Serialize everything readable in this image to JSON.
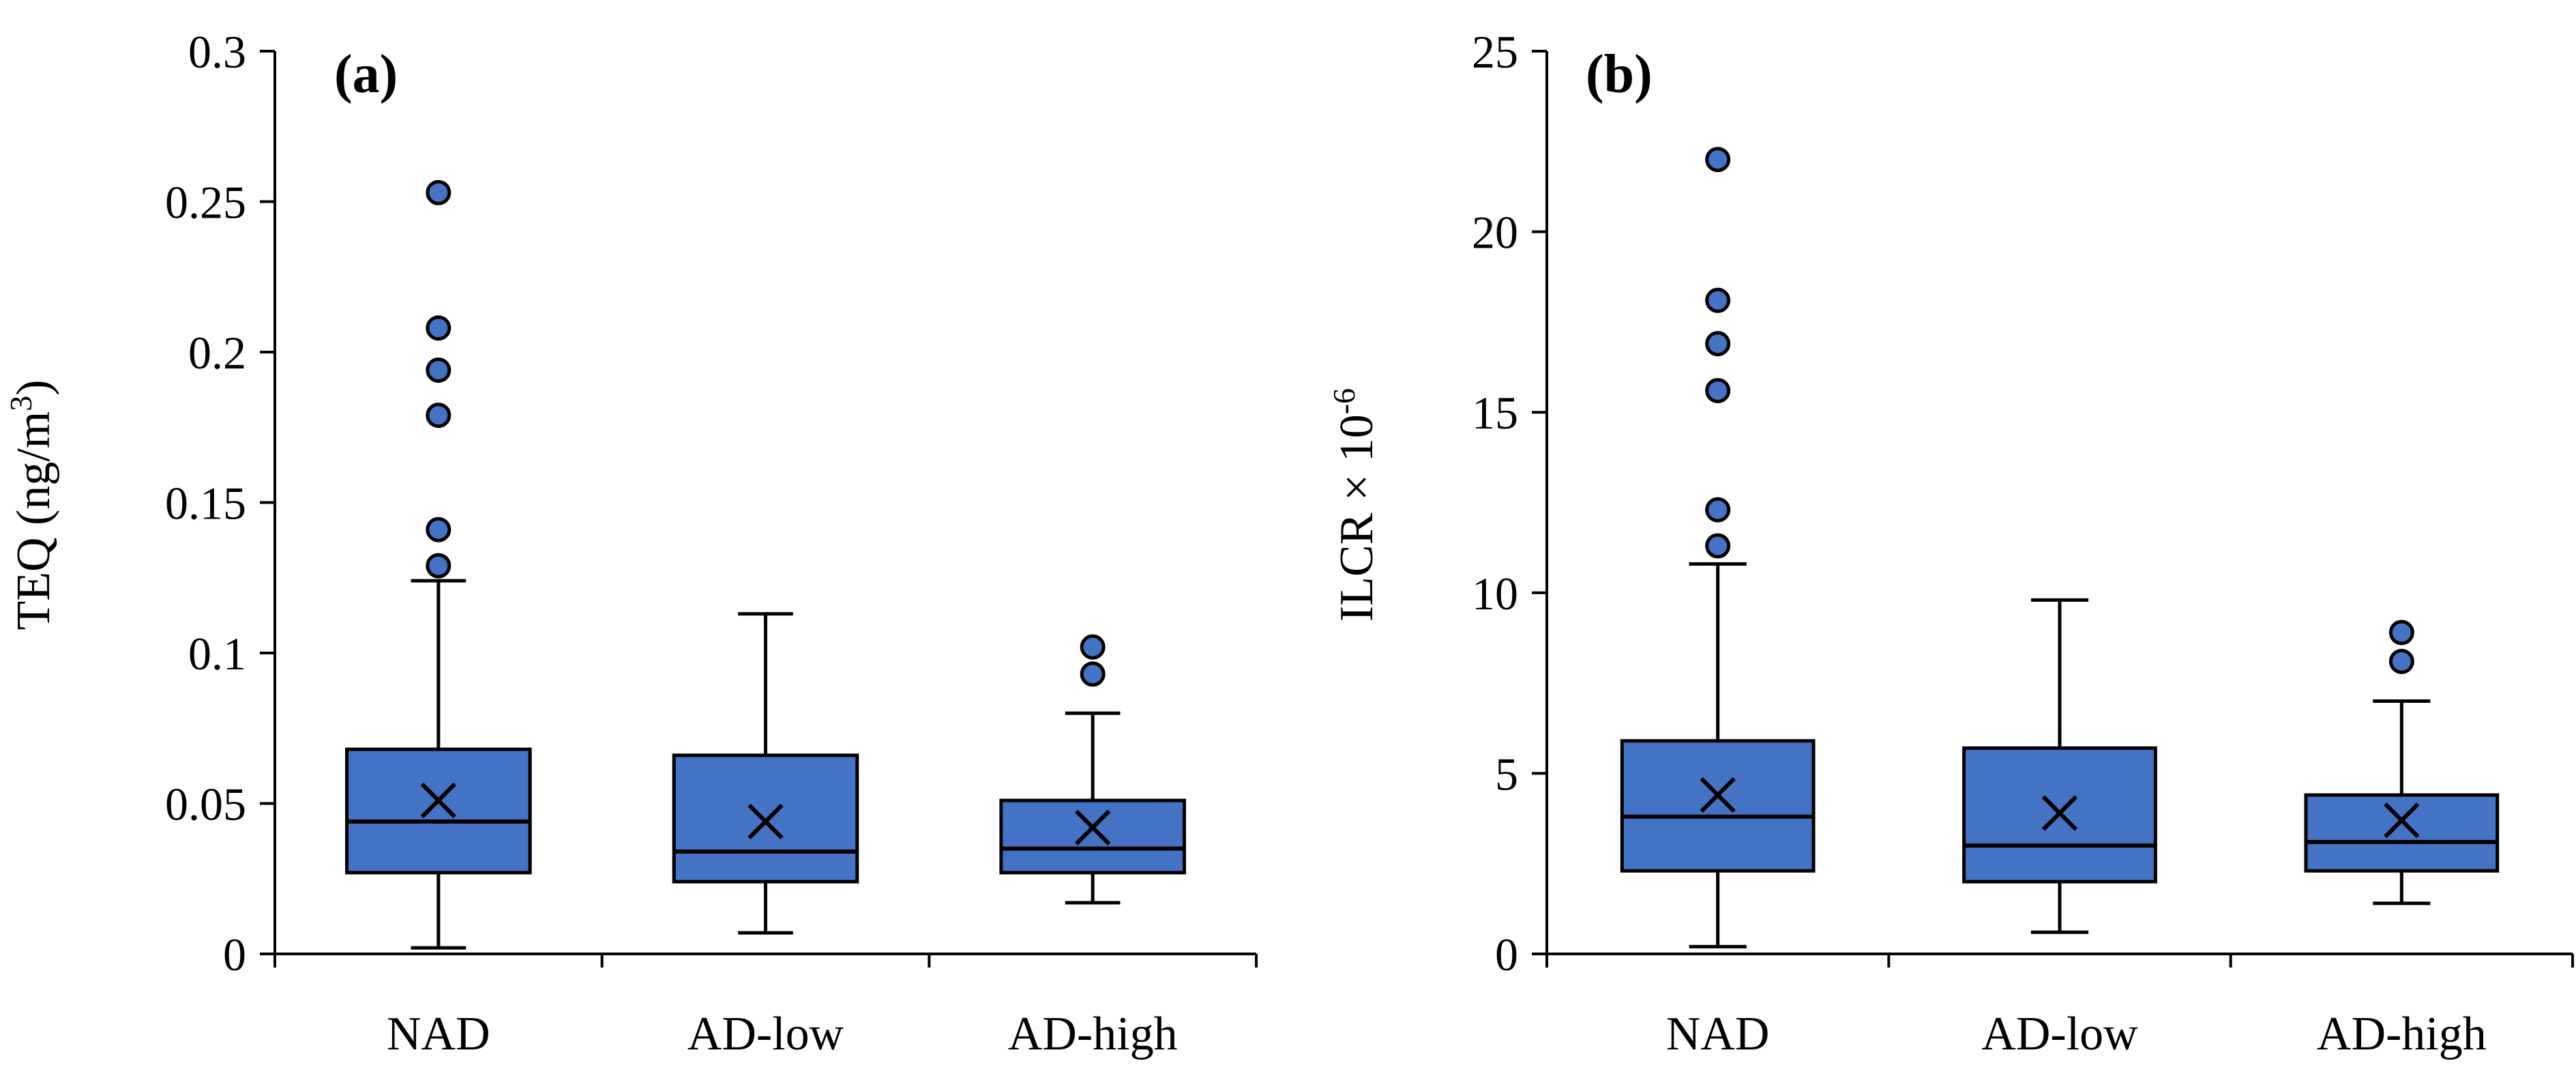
{
  "colors": {
    "box_fill": "#4472C4",
    "stroke": "#000000"
  },
  "chart_data": [
    {
      "type": "box",
      "panel_label": "(a)",
      "ylabel": "TEQ (ng/m",
      "ylabel_sup": "3",
      "ylabel_tail": ")",
      "ylim": [
        0,
        0.3
      ],
      "yticks": [
        0,
        0.05,
        0.1,
        0.15,
        0.2,
        0.25,
        0.3
      ],
      "ytick_labels": [
        "0",
        "0.05",
        "0.1",
        "0.15",
        "0.2",
        "0.25",
        "0.3"
      ],
      "categories": [
        "NAD",
        "AD-low",
        "AD-high"
      ],
      "boxes": [
        {
          "min": 0.002,
          "q1": 0.027,
          "median": 0.044,
          "q3": 0.068,
          "max": 0.124,
          "mean": 0.051,
          "outliers": [
            0.129,
            0.141,
            0.179,
            0.194,
            0.208,
            0.253
          ]
        },
        {
          "min": 0.007,
          "q1": 0.024,
          "median": 0.034,
          "q3": 0.066,
          "max": 0.113,
          "mean": 0.044,
          "outliers": []
        },
        {
          "min": 0.017,
          "q1": 0.027,
          "median": 0.035,
          "q3": 0.051,
          "max": 0.08,
          "mean": 0.042,
          "outliers": [
            0.093,
            0.102
          ]
        }
      ]
    },
    {
      "type": "box",
      "panel_label": "(b)",
      "ylabel": "ILCR × 10",
      "ylabel_sup": "-6",
      "ylabel_tail": "",
      "ylim": [
        0,
        25
      ],
      "yticks": [
        0,
        5,
        10,
        15,
        20,
        25
      ],
      "ytick_labels": [
        "0",
        "5",
        "10",
        "15",
        "20",
        "25"
      ],
      "categories": [
        "NAD",
        "AD-low",
        "AD-high"
      ],
      "boxes": [
        {
          "min": 0.2,
          "q1": 2.3,
          "median": 3.8,
          "q3": 5.9,
          "max": 10.8,
          "mean": 4.4,
          "outliers": [
            11.3,
            12.3,
            15.6,
            16.9,
            18.1,
            22.0
          ]
        },
        {
          "min": 0.6,
          "q1": 2.0,
          "median": 3.0,
          "q3": 5.7,
          "max": 9.8,
          "mean": 3.9,
          "outliers": []
        },
        {
          "min": 1.4,
          "q1": 2.3,
          "median": 3.1,
          "q3": 4.4,
          "max": 7.0,
          "mean": 3.7,
          "outliers": [
            8.1,
            8.9
          ]
        }
      ]
    }
  ]
}
